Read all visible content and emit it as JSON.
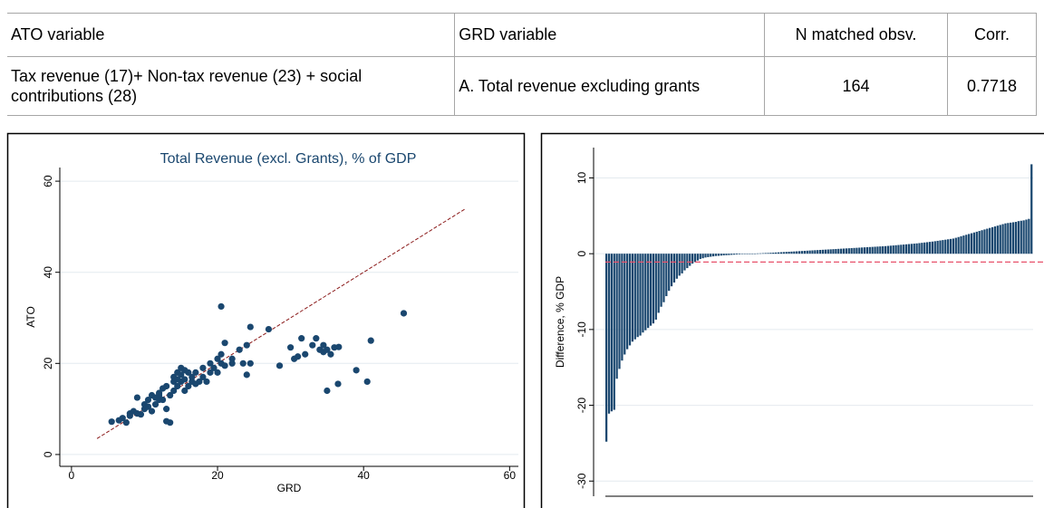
{
  "table": {
    "header": [
      "ATO variable",
      "GRD variable",
      "N matched obsv.",
      "Corr."
    ],
    "rows": [
      [
        "Tax revenue (17)+ Non-tax revenue (23) + social contributions (28)",
        "A. Total revenue excluding grants",
        164,
        0.7718
      ]
    ]
  },
  "chart_data": [
    {
      "type": "scatter",
      "title": "Total Revenue (excl. Grants), % of GDP",
      "x_label": "GRD",
      "y_label": "ATO",
      "x": [
        5.5,
        6.5,
        7,
        7.5,
        8,
        8,
        8.5,
        9,
        9,
        9.5,
        10,
        10,
        10.5,
        11,
        11,
        11.5,
        12,
        12,
        12.5,
        12.5,
        13,
        13,
        13.5,
        13,
        13.5,
        14,
        14,
        14,
        14.5,
        14.5,
        15,
        15,
        15,
        15.5,
        15.5,
        16,
        16,
        16.5,
        16.5,
        17,
        17,
        17.5,
        18,
        18,
        18.5,
        19,
        19,
        19.5,
        20,
        20,
        20.5,
        20.5,
        20.5,
        21,
        21,
        22,
        22,
        23,
        23.5,
        24,
        24,
        24.5,
        24.5,
        27,
        28.5,
        30,
        30.5,
        31,
        31.5,
        32,
        33,
        33.5,
        34,
        34.5,
        34.5,
        35,
        35,
        35.5,
        36,
        36.5,
        36.6,
        39,
        40.5,
        41,
        45.5,
        12,
        10.5,
        11.5,
        14.5,
        15.5
      ],
      "y": [
        7.2,
        7.5,
        8,
        7,
        9,
        8.5,
        9.5,
        9,
        12.5,
        8.8,
        10,
        11,
        12,
        13,
        9.5,
        11,
        12,
        13.5,
        14.5,
        12,
        10,
        7.3,
        7,
        15,
        13,
        14,
        16,
        17,
        15,
        18,
        16,
        17.5,
        19,
        14,
        16.5,
        15,
        18,
        16,
        17,
        15.5,
        18,
        16,
        17,
        19,
        16,
        18,
        20,
        19,
        21,
        18,
        20,
        22,
        32.5,
        19.5,
        24.5,
        21,
        20,
        23,
        20,
        24,
        17.5,
        28,
        20,
        27.5,
        19.5,
        23.5,
        21,
        21.5,
        25.5,
        22,
        24,
        25.5,
        23,
        22.5,
        24,
        23,
        14,
        22,
        23.5,
        15.5,
        23.6,
        18.5,
        16,
        25,
        31,
        13,
        10.5,
        12.5,
        16.5,
        18.5
      ],
      "color": "#1a476f",
      "xlim": [
        -1.6,
        61.2
      ],
      "ylim": [
        -2.6,
        63
      ],
      "xticks": [
        0,
        20,
        40,
        60
      ],
      "yticks": [
        0,
        20,
        40,
        60
      ],
      "grid": true,
      "reference_line": {
        "x": [
          3.5,
          54
        ],
        "y": [
          3.5,
          54
        ],
        "color": "#8b1a1a"
      }
    },
    {
      "type": "bar",
      "y_label": "Difference, % GDP",
      "values": [
        -24.8,
        -21.1,
        -20.8,
        -20.6,
        -16.5,
        -15.2,
        -14.1,
        -13.3,
        -12.6,
        -12.1,
        -11.6,
        -11.3,
        -11.0,
        -10.8,
        -10.4,
        -10.1,
        -9.8,
        -9.5,
        -9.2,
        -8.7,
        -7.8,
        -7.0,
        -6.4,
        -5.6,
        -4.9,
        -4.3,
        -3.8,
        -3.3,
        -2.9,
        -2.6,
        -2.2,
        -1.9,
        -1.6,
        -1.3,
        -1.1,
        -0.9,
        -0.7,
        -0.6,
        -0.5,
        -0.45,
        -0.4,
        -0.35,
        -0.3,
        -0.28,
        -0.25,
        -0.22,
        -0.2,
        -0.18,
        -0.15,
        -0.13,
        -0.1,
        -0.08,
        -0.06,
        -0.05,
        -0.03,
        -0.02,
        0,
        0.02,
        0.04,
        0.05,
        0.07,
        0.09,
        0.1,
        0.12,
        0.14,
        0.16,
        0.18,
        0.2,
        0.22,
        0.24,
        0.26,
        0.28,
        0.3,
        0.32,
        0.34,
        0.36,
        0.38,
        0.4,
        0.42,
        0.44,
        0.46,
        0.48,
        0.5,
        0.52,
        0.54,
        0.56,
        0.58,
        0.6,
        0.62,
        0.64,
        0.66,
        0.68,
        0.7,
        0.72,
        0.74,
        0.76,
        0.78,
        0.8,
        0.82,
        0.84,
        0.86,
        0.88,
        0.9,
        0.92,
        0.94,
        0.96,
        0.98,
        1.0,
        1.03,
        1.06,
        1.09,
        1.12,
        1.15,
        1.18,
        1.21,
        1.24,
        1.27,
        1.3,
        1.33,
        1.36,
        1.4,
        1.44,
        1.48,
        1.52,
        1.56,
        1.6,
        1.65,
        1.7,
        1.75,
        1.8,
        1.85,
        1.9,
        1.95,
        2.0,
        2.1,
        2.2,
        2.3,
        2.4,
        2.5,
        2.6,
        2.7,
        2.8,
        2.9,
        3.0,
        3.1,
        3.2,
        3.3,
        3.4,
        3.5,
        3.6,
        3.7,
        3.8,
        3.9,
        4.0,
        4.05,
        4.1,
        4.15,
        4.2,
        4.3,
        4.35,
        4.4,
        4.5,
        4.6,
        11.8
      ],
      "color": "#1a476f",
      "ylim": [
        -32,
        14
      ],
      "yticks": [
        -30,
        -20,
        -10,
        0,
        10
      ],
      "grid": true,
      "hline": {
        "value": -1.1,
        "color": "#e8516b"
      }
    }
  ]
}
